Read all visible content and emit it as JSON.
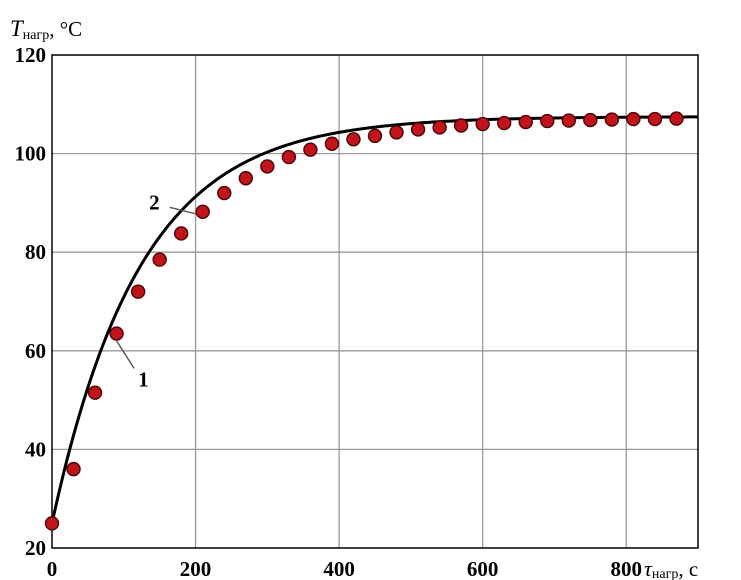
{
  "chart_data": {
    "type": "line",
    "title": "",
    "ylabel": {
      "symbol": "T",
      "subscript": "нагр",
      "unit": ", °C"
    },
    "xlabel": {
      "symbol": "τ",
      "subscript": "нагр",
      "unit": ", с"
    },
    "xlim": [
      0,
      900
    ],
    "ylim": [
      20,
      120
    ],
    "xticks": [
      0,
      200,
      400,
      600,
      800
    ],
    "yticks": [
      20,
      40,
      60,
      80,
      100,
      120
    ],
    "xtick_labels": [
      "0",
      "200",
      "400",
      "600",
      "800"
    ],
    "ytick_labels": [
      "20",
      "40",
      "60",
      "80",
      "100",
      "120"
    ],
    "grid": true,
    "series": [
      {
        "label": "1",
        "kind": "markers",
        "color": "#c0141a",
        "x": [
          0,
          30,
          60,
          90,
          120,
          150,
          180,
          210,
          240,
          270,
          300,
          330,
          360,
          390,
          420,
          450,
          480,
          510,
          540,
          570,
          600,
          630,
          660,
          690,
          720,
          750,
          780,
          810,
          840,
          870
        ],
        "y": [
          25,
          36,
          51.5,
          63.5,
          72,
          78.5,
          83.8,
          88.2,
          92,
          95,
          97.4,
          99.3,
          100.8,
          102,
          102.9,
          103.6,
          104.3,
          104.9,
          105.3,
          105.7,
          106,
          106.2,
          106.4,
          106.6,
          106.7,
          106.8,
          106.9,
          107,
          107,
          107.1
        ]
      },
      {
        "label": "2",
        "kind": "curve",
        "color": "#000000",
        "model": {
          "t_start": 25,
          "t_end": 107.5,
          "tau": 123
        }
      }
    ],
    "annotations": [
      {
        "text": "1",
        "target_x": 90,
        "target_y": 62,
        "label_x": 120,
        "label_y": 54
      },
      {
        "text": "2",
        "target_x": 200,
        "target_y": 87.8,
        "label_x": 150,
        "label_y": 89.5
      }
    ]
  }
}
